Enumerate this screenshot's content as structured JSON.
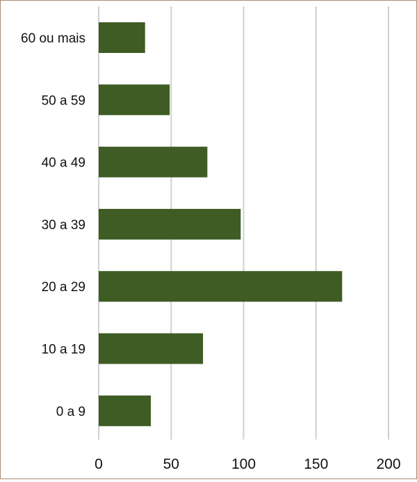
{
  "chart_data": {
    "type": "bar",
    "orientation": "horizontal",
    "categories": [
      "60 ou mais",
      "50 a 59",
      "40 a 49",
      "30 a 39",
      "20 a 29",
      "10 a 19",
      "0 a 9"
    ],
    "values": [
      32,
      49,
      75,
      98,
      168,
      72,
      36
    ],
    "xticks": [
      "0",
      "50",
      "100",
      "150",
      "200"
    ],
    "xlim": [
      0,
      200
    ],
    "title": "",
    "xlabel": "",
    "ylabel": "",
    "grid": "vertical",
    "legend": "none",
    "bar_color": "#3e5c24",
    "grid_color": "#d0d0d0"
  }
}
